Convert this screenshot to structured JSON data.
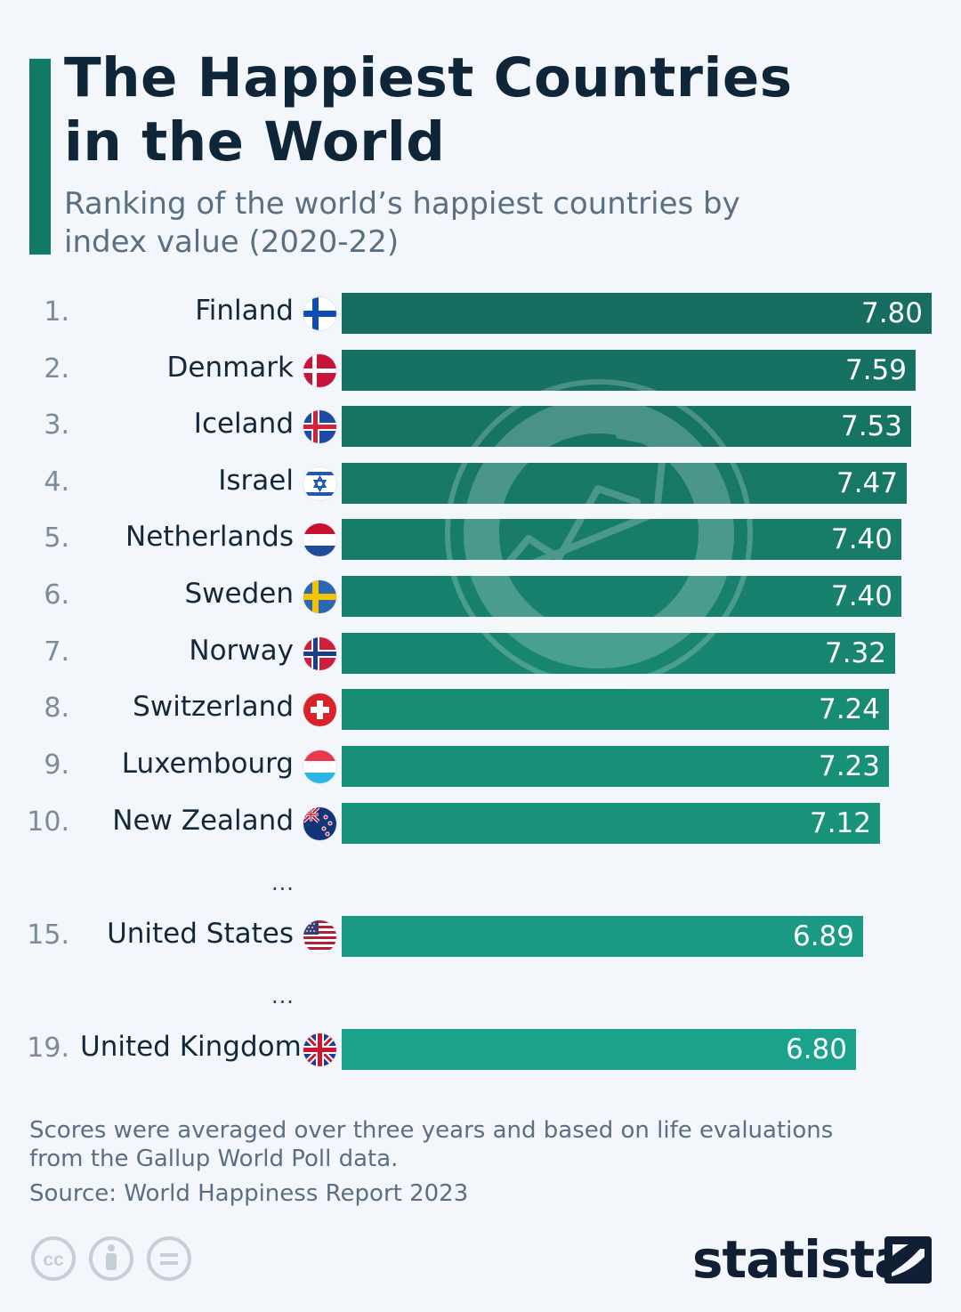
{
  "chart_data": {
    "type": "bar",
    "title": "The Happiest Countries in the World",
    "subtitle": "Ranking of the world’s happiest countries by index value (2020-22)",
    "xlabel": "",
    "ylabel": "",
    "xlim": [
      0,
      7.8
    ],
    "rows": [
      {
        "rank": "1.",
        "country": "Finland",
        "value": 7.8,
        "value_label": "7.80",
        "flag": "finland-flag",
        "color": "#166d60"
      },
      {
        "rank": "2.",
        "country": "Denmark",
        "value": 7.59,
        "value_label": "7.59",
        "flag": "denmark-flag",
        "color": "#167162"
      },
      {
        "rank": "3.",
        "country": "Iceland",
        "value": 7.53,
        "value_label": "7.53",
        "flag": "iceland-flag",
        "color": "#167463"
      },
      {
        "rank": "4.",
        "country": "Israel",
        "value": 7.47,
        "value_label": "7.47",
        "flag": "israel-flag",
        "color": "#177866"
      },
      {
        "rank": "5.",
        "country": "Netherlands",
        "value": 7.4,
        "value_label": "7.40",
        "flag": "netherlands-flag",
        "color": "#177d69"
      },
      {
        "rank": "6.",
        "country": "Sweden",
        "value": 7.4,
        "value_label": "7.40",
        "flag": "sweden-flag",
        "color": "#17816d"
      },
      {
        "rank": "7.",
        "country": "Norway",
        "value": 7.32,
        "value_label": "7.32",
        "flag": "norway-flag",
        "color": "#178570"
      },
      {
        "rank": "8.",
        "country": "Switzerland",
        "value": 7.24,
        "value_label": "7.24",
        "flag": "switzerland-flag",
        "color": "#188b73"
      },
      {
        "rank": "9.",
        "country": "Luxembourg",
        "value": 7.23,
        "value_label": "7.23",
        "flag": "luxembourg-flag",
        "color": "#188f77"
      },
      {
        "rank": "10.",
        "country": "New Zealand",
        "value": 7.12,
        "value_label": "7.12",
        "flag": "new-zealand-flag",
        "color": "#19927a"
      },
      {
        "rank": "15.",
        "country": "United States",
        "value": 6.89,
        "value_label": "6.89",
        "flag": "united-states-flag",
        "color": "#1a9a84"
      },
      {
        "rank": "19.",
        "country": "United Kingdom",
        "value": 6.8,
        "value_label": "6.80",
        "flag": "united-kingdom-flag",
        "color": "#1ba28c"
      }
    ],
    "ellipses": [
      "...",
      "..."
    ]
  },
  "footer": {
    "note": "Scores were averaged over three years and based on life evaluations from the Gallup World Poll data.",
    "source": "Source: World Happiness Report 2023"
  },
  "brand": {
    "name": "statista"
  },
  "colors": {
    "accent": "#117a65",
    "title": "#0f2538",
    "subtitle": "#5a6f82",
    "background": "#f3f6fa"
  }
}
